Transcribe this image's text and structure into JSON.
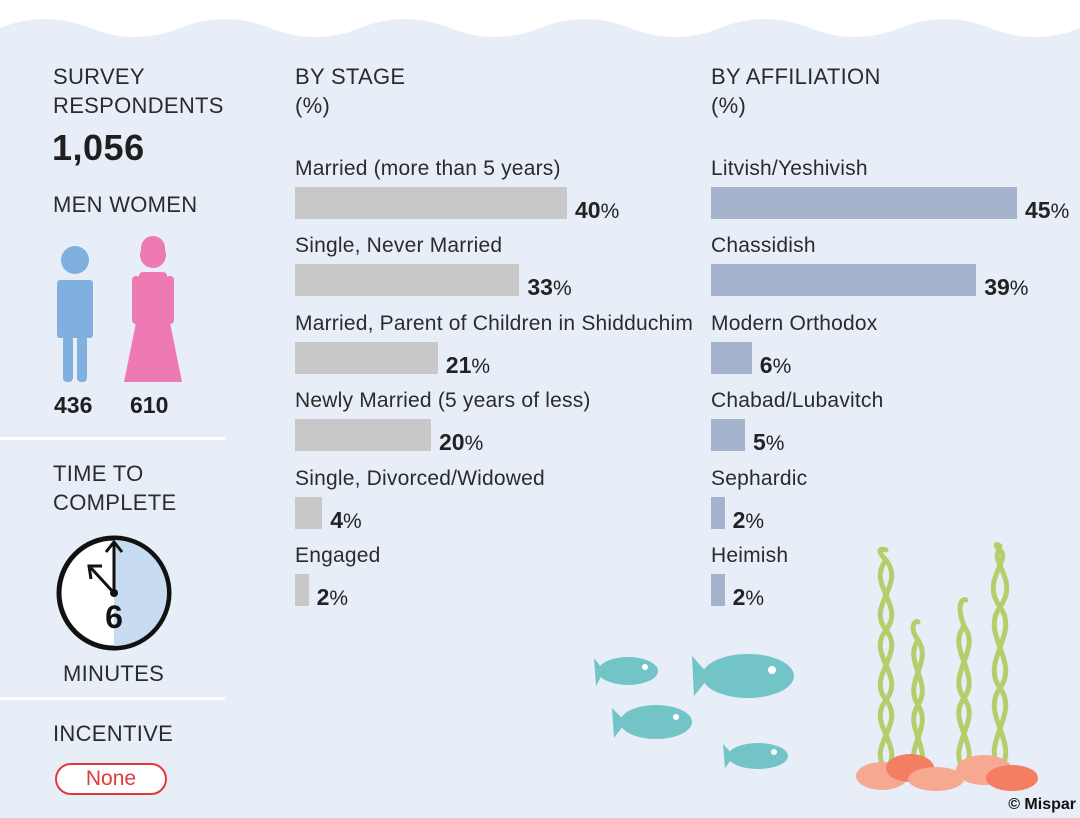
{
  "left": {
    "respondents_label_line1": "SURVEY",
    "respondents_label_line2": "RESPONDENTS",
    "respondents_total": "1,056",
    "gender_label": "MEN WOMEN",
    "men_count": "436",
    "women_count": "610",
    "time_label_line1": "TIME TO",
    "time_label_line2": "COMPLETE",
    "minutes_value": "6",
    "minutes_label": "MINUTES",
    "minutes_fraction_of_hour": 0.1,
    "incentive_label": "INCENTIVE",
    "incentive_value": "None"
  },
  "colors": {
    "background": "#e7eef8",
    "stage_bar": "#c8c8c8",
    "affiliation_bar": "#a5b2cb",
    "men": "#7fb0de",
    "women": "#ee7ab3",
    "clock_fill": "#c7dcf1",
    "incentive_accent": "#e23a3a",
    "fish": "#72c4c6",
    "seaweed": "#b7cd6b",
    "coral": "#f47e61"
  },
  "icons": [
    "man-icon",
    "woman-icon",
    "clock-icon",
    "fish-icon",
    "seaweed-icon",
    "coral-icon"
  ],
  "copyright": "© Mispar",
  "chart_data": [
    {
      "type": "bar",
      "orientation": "horizontal",
      "title_line1": "BY STAGE",
      "title_line2": "(%)",
      "unit": "%",
      "xlim": [
        0,
        45
      ],
      "categories": [
        "Married (more than 5 years)",
        "Single, Never Married",
        "Married, Parent of Children in Shidduchim",
        "Newly Married (5 years of less)",
        "Single, Divorced/Widowed",
        "Engaged"
      ],
      "values": [
        40,
        33,
        21,
        20,
        4,
        2
      ],
      "grid": false,
      "legend": "none"
    },
    {
      "type": "bar",
      "orientation": "horizontal",
      "title_line1": "BY AFFILIATION",
      "title_line2": "(%)",
      "unit": "%",
      "xlim": [
        0,
        45
      ],
      "categories": [
        "Litvish/Yeshivish",
        "Chassidish",
        "Modern Orthodox",
        "Chabad/Lubavitch",
        "Sephardic",
        "Heimish"
      ],
      "values": [
        45,
        39,
        6,
        5,
        2,
        2
      ],
      "grid": false,
      "legend": "none"
    }
  ]
}
